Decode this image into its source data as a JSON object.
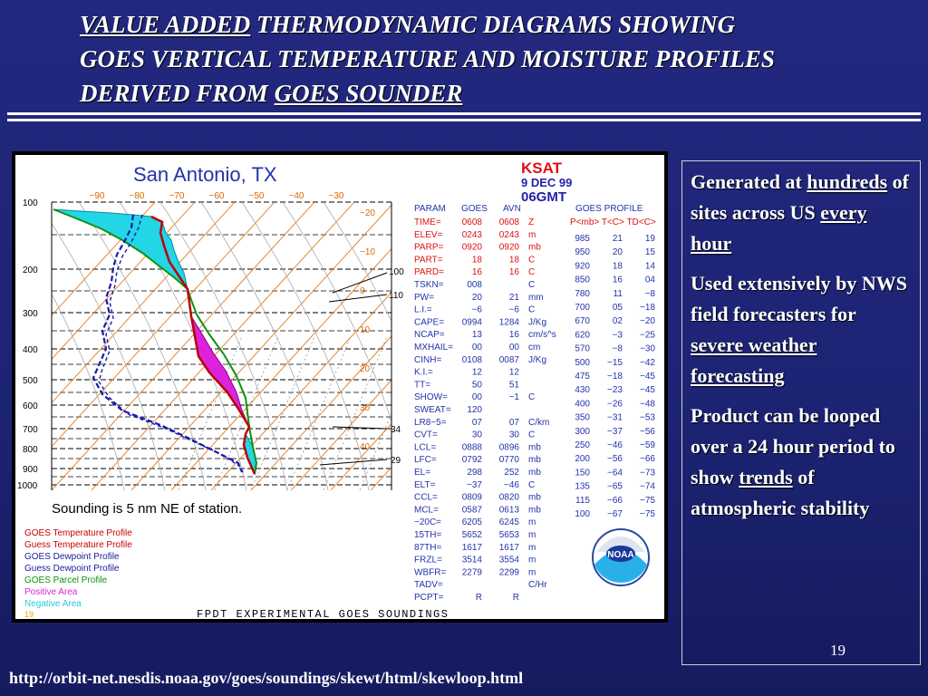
{
  "header": {
    "line1_ul": "VALUE ADDED",
    "line1_rest": " THERMODYNAMIC DIAGRAMS SHOWING",
    "line2": "GOES VERTICAL TEMPERATURE AND MOISTURE PROFILES",
    "line3_start": "DERIVED FROM ",
    "line3_ul": "GOES SOUNDER"
  },
  "figure": {
    "station_title": "San Antonio, TX",
    "station_id": "KSAT",
    "date": "9 DEC 99",
    "time": "06GMT",
    "top_temps": [
      "−90",
      "−80",
      "−70",
      "−60",
      "−50",
      "−40",
      "−30"
    ],
    "right_temps": [
      "−20",
      "−10",
      "0",
      "10",
      "20",
      "30",
      "40"
    ],
    "pressure_labels": [
      "100",
      "200",
      "300",
      "400",
      "500",
      "600",
      "700",
      "800",
      "900",
      "1000"
    ],
    "inner_labels": [
      "100",
      "110",
      "34",
      "29"
    ],
    "sounding_note": "Sounding is  5 nm NE   of station.",
    "legend": [
      {
        "label": "GOES Temperature Profile",
        "color": "#cc0000"
      },
      {
        "label": "Guess Temperature Profile",
        "color": "#cc0000"
      },
      {
        "label": "GOES Dewpoint Profile",
        "color": "#1a1aa0"
      },
      {
        "label": "Guess Dewpoint Profile",
        "color": "#1a1aa0"
      },
      {
        "label": "GOES Parcel Profile",
        "color": "#109010"
      },
      {
        "label": "Positive Area",
        "color": "#dd22dd"
      },
      {
        "label": "Negative Area",
        "color": "#22ccdd"
      }
    ],
    "legend_extra": "19",
    "footer": "FPDT  EXPERIMENTAL  GOES  SOUNDINGS",
    "params_header": [
      "PARAM",
      "GOES",
      "AVN"
    ],
    "params": [
      [
        "TIME=",
        "0608",
        "0608",
        "Z"
      ],
      [
        "ELEV=",
        "0243",
        "0243",
        "m"
      ],
      [
        "PARP=",
        "0920",
        "0920",
        "mb"
      ],
      [
        "PART=",
        "18",
        "18",
        "C"
      ],
      [
        "PARD=",
        "16",
        "16",
        "C"
      ],
      [
        "TSKN=",
        "008",
        "",
        "C"
      ],
      [
        "PW=",
        "20",
        "21",
        "mm"
      ],
      [
        "L.I.=",
        "−6",
        "−6",
        "C"
      ],
      [
        "CAPE=",
        "0994",
        "1284",
        "J/Kg"
      ],
      [
        "NCAP=",
        "13",
        "16",
        "cm/s^s"
      ],
      [
        "MXHAIL=",
        "00",
        "00",
        "cm"
      ],
      [
        "CINH=",
        "0108",
        "0087",
        "J/Kg"
      ],
      [
        "K.I.=",
        "12",
        "12",
        ""
      ],
      [
        "TT=",
        "50",
        "51",
        ""
      ],
      [
        "SHOW=",
        "00",
        "−1",
        "C"
      ],
      [
        "SWEAT=",
        "120",
        "",
        ""
      ],
      [
        "LR8−5=",
        "07",
        "07",
        "C/km"
      ],
      [
        "CVT=",
        "30",
        "30",
        "C"
      ],
      [
        "LCL=",
        "0888",
        "0896",
        "mb"
      ],
      [
        "LFC=",
        "0792",
        "0770",
        "mb"
      ],
      [
        "EL=",
        "298",
        "252",
        "mb"
      ],
      [
        "ELT=",
        "−37",
        "−46",
        "C"
      ],
      [
        "CCL=",
        "0809",
        "0820",
        "mb"
      ],
      [
        "MCL=",
        "0587",
        "0613",
        "mb"
      ],
      [
        "−20C=",
        "6205",
        "6245",
        "m"
      ],
      [
        "15TH=",
        "5652",
        "5653",
        "m"
      ],
      [
        "87TH=",
        "1617",
        "1617",
        "m"
      ],
      [
        "FRZL=",
        "3514",
        "3554",
        "m"
      ],
      [
        "WBFR=",
        "2279",
        "2299",
        "m"
      ],
      [
        "TADV=",
        "",
        "",
        "C/Hr"
      ],
      [
        "PCPT=",
        "R",
        "R",
        ""
      ]
    ],
    "profile_title": "GOES PROFILE",
    "profile_header": "P<mb> T<C> TD<C>",
    "profile": [
      [
        "985",
        "21",
        "19"
      ],
      [
        "950",
        "20",
        "15"
      ],
      [
        "920",
        "18",
        "14"
      ],
      [
        "850",
        "16",
        "04"
      ],
      [
        "780",
        "11",
        "−8"
      ],
      [
        "700",
        "05",
        "−18"
      ],
      [
        "670",
        "02",
        "−20"
      ],
      [
        "620",
        "−3",
        "−25"
      ],
      [
        "570",
        "−8",
        "−30"
      ],
      [
        "500",
        "−15",
        "−42"
      ],
      [
        "475",
        "−18",
        "−45"
      ],
      [
        "430",
        "−23",
        "−45"
      ],
      [
        "400",
        "−26",
        "−48"
      ],
      [
        "350",
        "−31",
        "−53"
      ],
      [
        "300",
        "−37",
        "−56"
      ],
      [
        "250",
        "−46",
        "−59"
      ],
      [
        "200",
        "−56",
        "−66"
      ],
      [
        "150",
        "−64",
        "−73"
      ],
      [
        "135",
        "−65",
        "−74"
      ],
      [
        "115",
        "−66",
        "−75"
      ],
      [
        "100",
        "−67",
        "−75"
      ]
    ],
    "logo_text": "NOAA"
  },
  "panel": {
    "p1_a": "Generated at ",
    "p1_ul1": "hundreds",
    "p1_b": " of sites across US ",
    "p1_ul2": "every hour",
    "p2_a": "Used extensively by NWS field forecasters for ",
    "p2_ul": "severe weather forecasting",
    "p3_a": "Product can be looped over a 24 hour period to show ",
    "p3_ul": "trends",
    "p3_b": " of atmospheric stability"
  },
  "page_number": "19",
  "source_url": "http://orbit-net.nesdis.noaa.gov/goes/soundings/skewt/html/skewloop.html"
}
